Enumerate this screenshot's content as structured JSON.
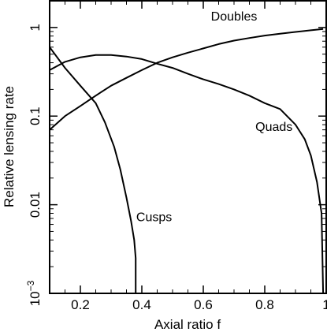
{
  "chart_data": {
    "type": "line",
    "title": "",
    "xlabel": "Axial ratio f",
    "ylabel": "Relative lensing rate",
    "xlim": [
      0.1,
      1.0
    ],
    "ylim": [
      0.001,
      2
    ],
    "yscale": "log",
    "grid": false,
    "legend": "none",
    "x_ticks": [
      0.2,
      0.4,
      0.6,
      0.8,
      1.0
    ],
    "x_tick_labels": [
      "0.2",
      "0.4",
      "0.6",
      "0.8",
      "1"
    ],
    "y_ticks": [
      0.001,
      0.01,
      0.1,
      1
    ],
    "y_tick_labels": [
      {
        "base": "10",
        "exp": "−3"
      },
      {
        "base": "0.01",
        "exp": ""
      },
      {
        "base": "0.1",
        "exp": ""
      },
      {
        "base": "1",
        "exp": ""
      }
    ],
    "series": [
      {
        "name": "Doubles",
        "x": [
          0.1,
          0.15,
          0.2,
          0.25,
          0.3,
          0.35,
          0.4,
          0.45,
          0.5,
          0.55,
          0.6,
          0.65,
          0.7,
          0.75,
          0.8,
          0.85,
          0.9,
          0.95,
          0.99
        ],
        "y": [
          0.07,
          0.1,
          0.13,
          0.17,
          0.22,
          0.27,
          0.33,
          0.4,
          0.46,
          0.52,
          0.58,
          0.65,
          0.71,
          0.76,
          0.81,
          0.85,
          0.89,
          0.93,
          0.96
        ]
      },
      {
        "name": "Quads",
        "x": [
          0.1,
          0.15,
          0.2,
          0.25,
          0.3,
          0.35,
          0.4,
          0.45,
          0.5,
          0.55,
          0.6,
          0.65,
          0.7,
          0.75,
          0.8,
          0.85,
          0.9,
          0.93,
          0.95,
          0.97,
          0.985,
          0.99
        ],
        "y": [
          0.33,
          0.41,
          0.46,
          0.49,
          0.49,
          0.47,
          0.44,
          0.39,
          0.35,
          0.3,
          0.26,
          0.23,
          0.2,
          0.17,
          0.14,
          0.12,
          0.08,
          0.055,
          0.036,
          0.018,
          0.008,
          0.001
        ]
      },
      {
        "name": "Cusps",
        "x": [
          0.1,
          0.15,
          0.2,
          0.25,
          0.28,
          0.31,
          0.33,
          0.35,
          0.365,
          0.375,
          0.38,
          0.38
        ],
        "y": [
          0.6,
          0.35,
          0.22,
          0.14,
          0.085,
          0.045,
          0.025,
          0.012,
          0.0065,
          0.004,
          0.0025,
          0.001
        ]
      }
    ],
    "annotations": [
      {
        "text": "Doubles",
        "x": 0.7,
        "y": 1.2
      },
      {
        "text": "Quads",
        "x": 0.83,
        "y": 0.068
      },
      {
        "text": "Cusps",
        "x": 0.44,
        "y": 0.0065
      }
    ]
  }
}
